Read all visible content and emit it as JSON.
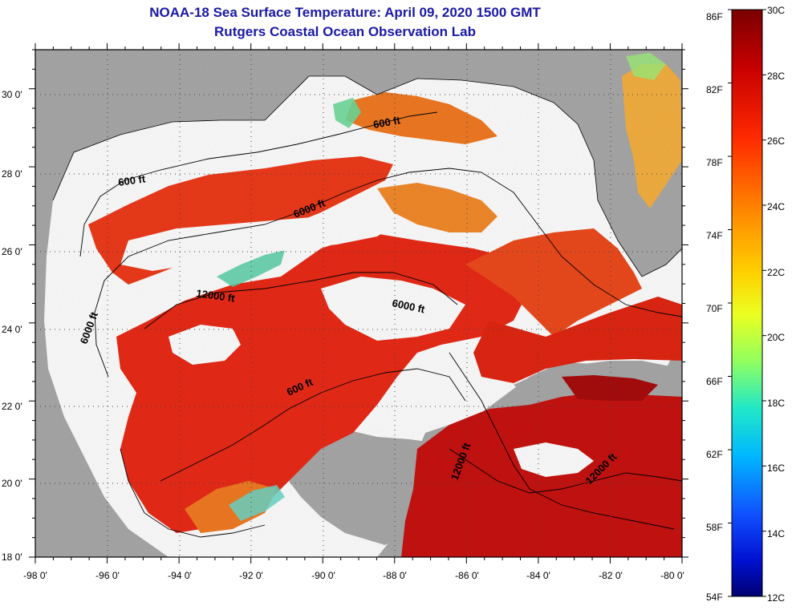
{
  "title": {
    "line1": "NOAA-18 Sea Surface Temperature:  April 09, 2020 1500 GMT",
    "line2": "Rutgers Coastal Ocean Observation Lab"
  },
  "map": {
    "lon_range": [
      -98,
      -80
    ],
    "lat_range": [
      18,
      31
    ],
    "lon_ticks": [
      "-98 0'",
      "-96 0'",
      "-94 0'",
      "-92 0'",
      "-90 0'",
      "-88 0'",
      "-86 0'",
      "-84 0'",
      "-82 0'",
      "-80 0'"
    ],
    "lat_ticks": [
      "18 0'",
      "20 0'",
      "22 0'",
      "24 0'",
      "26 0'",
      "28 0'",
      "30 0'"
    ],
    "colors": {
      "land": "#a9a9a9",
      "cloud": "#ffffff",
      "warm_water": "#ea2a16",
      "hot_water": "#c81210",
      "cool_water": "#f27a22",
      "cold_patch": "#58d0a8"
    },
    "contour_labels": [
      "600 ft",
      "600 ft",
      "600 ft",
      "6000 ft",
      "6000 ft",
      "6000 ft",
      "12000 ft",
      "12000 ft",
      "12000 ft"
    ]
  },
  "colorbar": {
    "fahrenheit_labels": [
      "86F",
      "82F",
      "78F",
      "74F",
      "70F",
      "66F",
      "62F",
      "58F",
      "54F"
    ],
    "celsius_labels": [
      "30C",
      "28C",
      "26C",
      "24C",
      "22C",
      "20C",
      "18C",
      "16C",
      "14C",
      "12C"
    ],
    "range_f": [
      54,
      86
    ],
    "range_c": [
      12,
      30
    ]
  }
}
